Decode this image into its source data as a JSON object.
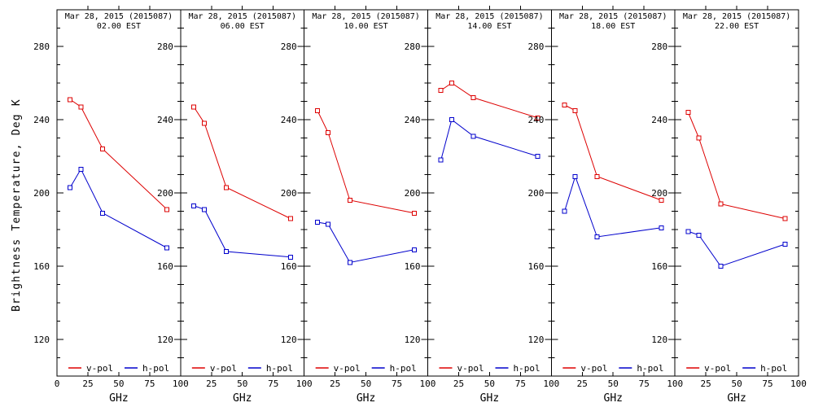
{
  "figure": {
    "y_axis_title": "Brightness Temperature, Deg K",
    "x_axis_title": "GHz",
    "legend": {
      "v_label": "v-pol",
      "h_label": "h-pol",
      "position": "bottom-inside"
    },
    "colors": {
      "v_pol": "#dd0000",
      "h_pol": "#0000cc",
      "axis": "#000000",
      "background": "#ffffff"
    }
  },
  "chart_data": [
    {
      "type": "line",
      "title": "Mar 28, 2015 (2015087)",
      "subtitle": "02.00 EST",
      "xlabel": "GHz",
      "ylabel": "Brightness Temperature, Deg K",
      "x": [
        10.7,
        19.35,
        37,
        89
      ],
      "xlim": [
        0,
        100
      ],
      "ylim": [
        100,
        300
      ],
      "xticks": [
        0,
        25,
        50,
        75,
        100
      ],
      "yticks": [
        120,
        160,
        200,
        240,
        280
      ],
      "y_minor_step": 10,
      "grid": false,
      "series": [
        {
          "name": "v-pol",
          "color": "#dd0000",
          "values": [
            251,
            247,
            224,
            191
          ]
        },
        {
          "name": "h-pol",
          "color": "#0000cc",
          "values": [
            203,
            213,
            189,
            170
          ]
        }
      ]
    },
    {
      "type": "line",
      "title": "Mar 28, 2015 (2015087)",
      "subtitle": "06.00 EST",
      "xlabel": "GHz",
      "ylabel": "Brightness Temperature, Deg K",
      "x": [
        10.7,
        19.35,
        37,
        89
      ],
      "xlim": [
        0,
        100
      ],
      "ylim": [
        100,
        300
      ],
      "xticks": [
        0,
        25,
        50,
        75,
        100
      ],
      "yticks": [
        120,
        160,
        200,
        240,
        280
      ],
      "y_minor_step": 10,
      "grid": false,
      "series": [
        {
          "name": "v-pol",
          "color": "#dd0000",
          "values": [
            247,
            238,
            203,
            186
          ]
        },
        {
          "name": "h-pol",
          "color": "#0000cc",
          "values": [
            193,
            191,
            168,
            165
          ]
        }
      ]
    },
    {
      "type": "line",
      "title": "Mar 28, 2015 (2015087)",
      "subtitle": "10.00 EST",
      "xlabel": "GHz",
      "ylabel": "Brightness Temperature, Deg K",
      "x": [
        10.7,
        19.35,
        37,
        89
      ],
      "xlim": [
        0,
        100
      ],
      "ylim": [
        100,
        300
      ],
      "xticks": [
        0,
        25,
        50,
        75,
        100
      ],
      "yticks": [
        120,
        160,
        200,
        240,
        280
      ],
      "y_minor_step": 10,
      "grid": false,
      "series": [
        {
          "name": "v-pol",
          "color": "#dd0000",
          "values": [
            245,
            233,
            196,
            189
          ]
        },
        {
          "name": "h-pol",
          "color": "#0000cc",
          "values": [
            184,
            183,
            162,
            169
          ]
        }
      ]
    },
    {
      "type": "line",
      "title": "Mar 28, 2015 (2015087)",
      "subtitle": "14.00 EST",
      "xlabel": "GHz",
      "ylabel": "Brightness Temperature, Deg K",
      "x": [
        10.7,
        19.35,
        37,
        89
      ],
      "xlim": [
        0,
        100
      ],
      "ylim": [
        100,
        300
      ],
      "xticks": [
        0,
        25,
        50,
        75,
        100
      ],
      "yticks": [
        120,
        160,
        200,
        240,
        280
      ],
      "y_minor_step": 10,
      "grid": false,
      "series": [
        {
          "name": "v-pol",
          "color": "#dd0000",
          "values": [
            256,
            260,
            252,
            241
          ]
        },
        {
          "name": "h-pol",
          "color": "#0000cc",
          "values": [
            218,
            240,
            231,
            220
          ]
        }
      ]
    },
    {
      "type": "line",
      "title": "Mar 28, 2015 (2015087)",
      "subtitle": "18.00 EST",
      "xlabel": "GHz",
      "ylabel": "Brightness Temperature, Deg K",
      "x": [
        10.7,
        19.35,
        37,
        89
      ],
      "xlim": [
        0,
        100
      ],
      "ylim": [
        100,
        300
      ],
      "xticks": [
        0,
        25,
        50,
        75,
        100
      ],
      "yticks": [
        120,
        160,
        200,
        240,
        280
      ],
      "y_minor_step": 10,
      "grid": false,
      "series": [
        {
          "name": "v-pol",
          "color": "#dd0000",
          "values": [
            248,
            245,
            209,
            196
          ]
        },
        {
          "name": "h-pol",
          "color": "#0000cc",
          "values": [
            190,
            209,
            176,
            181
          ]
        }
      ]
    },
    {
      "type": "line",
      "title": "Mar 28, 2015 (2015087)",
      "subtitle": "22.00 EST",
      "xlabel": "GHz",
      "ylabel": "Brightness Temperature, Deg K",
      "x": [
        10.7,
        19.35,
        37,
        89
      ],
      "xlim": [
        0,
        100
      ],
      "ylim": [
        100,
        300
      ],
      "xticks": [
        0,
        25,
        50,
        75,
        100
      ],
      "yticks": [
        120,
        160,
        200,
        240,
        280
      ],
      "y_minor_step": 10,
      "grid": false,
      "series": [
        {
          "name": "v-pol",
          "color": "#dd0000",
          "values": [
            244,
            230,
            194,
            186
          ]
        },
        {
          "name": "h-pol",
          "color": "#0000cc",
          "values": [
            179,
            177,
            160,
            172
          ]
        }
      ]
    }
  ]
}
